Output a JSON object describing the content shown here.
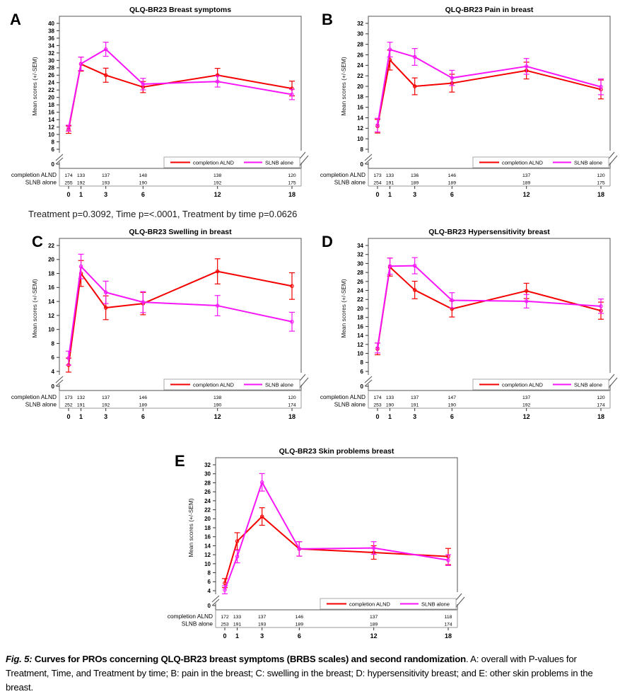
{
  "figure": {
    "pvalue_note": "Treatment p=0.3092, Time p=<.0001, Treatment by time p=0.0626",
    "caption": {
      "fig_label": "Fig. 5: ",
      "bold": "Curves for PROs concerning QLQ-BR23 breast symptoms (BRBS scales) and second randomization",
      "rest": ". A: overall with P-values for Treatment, Time, and Treatment by time; B: pain in the breast; C: swelling in the breast; D: hypersensitivity breast; and E: other skin problems in the breast."
    }
  },
  "colors": {
    "completion_alnd": "#f50000",
    "slnb_alone": "#f716f7"
  },
  "chart_data": [
    {
      "panel": "A",
      "type": "line",
      "title": "QLQ-BR23 Breast symptoms",
      "ylabel": "Mean scores (+/-SEM)",
      "x": [
        0,
        1,
        3,
        6,
        12,
        18
      ],
      "xticklabels": [
        "0",
        "1",
        "3",
        "6",
        "12",
        "18"
      ],
      "ylim": [
        6,
        40
      ],
      "ytick_step": 2,
      "broken_axis_zero_label": "0",
      "legend": [
        "completion ALND",
        "SLNB alone"
      ],
      "at_risk_labels": [
        "completion ALND",
        "SLNB alone"
      ],
      "series": [
        {
          "name": "completion ALND",
          "color": "#f50000",
          "values": [
            11.3,
            29.0,
            26.0,
            22.8,
            26.0,
            22.4
          ],
          "sem": [
            1.0,
            1.9,
            1.9,
            1.5,
            1.85,
            2.0
          ],
          "at_risk": [
            174,
            133,
            137,
            148,
            138,
            120
          ]
        },
        {
          "name": "SLNB alone",
          "color": "#f716f7",
          "values": [
            11.7,
            29.1,
            33.0,
            23.6,
            24.3,
            20.8
          ],
          "sem": [
            0.8,
            1.8,
            1.9,
            1.55,
            1.5,
            1.4
          ],
          "at_risk": [
            255,
            192,
            193,
            190,
            192,
            175
          ]
        }
      ]
    },
    {
      "panel": "B",
      "type": "line",
      "title": "QLQ-BR23 Pain in breast",
      "ylabel": "Mean scores (+/-SEM)",
      "x": [
        0,
        1,
        3,
        6,
        12,
        18
      ],
      "xticklabels": [
        "0",
        "1",
        "3",
        "6",
        "12",
        "18"
      ],
      "ylim": [
        8,
        32
      ],
      "ytick_step": 2,
      "broken_axis_zero_label": "0",
      "legend": [
        "completion ALND",
        "SLNB alone"
      ],
      "at_risk_labels": [
        "completion ALND",
        "SLNB alone"
      ],
      "series": [
        {
          "name": "completion ALND",
          "color": "#f50000",
          "values": [
            12.4,
            25.0,
            20.0,
            20.6,
            23.0,
            19.4
          ],
          "sem": [
            1.3,
            1.9,
            1.6,
            1.7,
            1.6,
            1.8
          ],
          "at_risk": [
            173,
            133,
            136,
            146,
            137,
            120
          ]
        },
        {
          "name": "SLNB alone",
          "color": "#f716f7",
          "values": [
            12.6,
            27.0,
            25.6,
            21.6,
            23.8,
            19.9
          ],
          "sem": [
            1.3,
            1.4,
            1.6,
            1.45,
            1.5,
            1.5
          ],
          "at_risk": [
            254,
            191,
            189,
            189,
            189,
            175
          ]
        }
      ]
    },
    {
      "panel": "C",
      "type": "line",
      "title": "QLQ-BR23 Swelling in breast",
      "ylabel": "Mean scores (+/-SEM)",
      "x": [
        0,
        1,
        3,
        6,
        12,
        18
      ],
      "xticklabels": [
        "0",
        "1",
        "3",
        "6",
        "12",
        "18"
      ],
      "ylim": [
        4,
        22
      ],
      "ytick_step": 2,
      "broken_axis_zero_label": "0",
      "legend": [
        "completion ALND",
        "SLNB alone"
      ],
      "at_risk_labels": [
        "completion ALND",
        "SLNB alone"
      ],
      "series": [
        {
          "name": "completion ALND",
          "color": "#f50000",
          "values": [
            4.9,
            18.0,
            13.1,
            13.7,
            18.3,
            16.2
          ],
          "sem": [
            1.0,
            1.85,
            1.7,
            1.6,
            1.8,
            1.9
          ],
          "at_risk": [
            173,
            132,
            137,
            146,
            138,
            120
          ]
        },
        {
          "name": "SLNB alone",
          "color": "#f716f7",
          "values": [
            5.9,
            19.0,
            15.3,
            13.9,
            13.4,
            11.1
          ],
          "sem": [
            1.0,
            1.75,
            1.6,
            1.5,
            1.45,
            1.35
          ],
          "at_risk": [
            252,
            191,
            192,
            189,
            190,
            174
          ]
        }
      ]
    },
    {
      "panel": "D",
      "type": "line",
      "title": "QLQ-BR23 Hypersensitivity breast",
      "ylabel": "Mean scores (+/-SEM)",
      "x": [
        0,
        1,
        3,
        6,
        12,
        18
      ],
      "xticklabels": [
        "0",
        "1",
        "3",
        "6",
        "12",
        "18"
      ],
      "ylim": [
        6,
        34
      ],
      "ytick_step": 2,
      "broken_axis_zero_label": "0",
      "legend": [
        "completion ALND",
        "SLNB alone"
      ],
      "at_risk_labels": [
        "completion ALND",
        "SLNB alone"
      ],
      "series": [
        {
          "name": "completion ALND",
          "color": "#f50000",
          "values": [
            11.0,
            29.2,
            24.1,
            19.9,
            23.9,
            19.5
          ],
          "sem": [
            1.3,
            2.0,
            1.95,
            1.8,
            1.7,
            1.9
          ],
          "at_risk": [
            174,
            133,
            137,
            147,
            137,
            120
          ]
        },
        {
          "name": "SLNB alone",
          "color": "#f716f7",
          "values": [
            11.2,
            29.4,
            29.5,
            21.8,
            21.6,
            20.5
          ],
          "sem": [
            1.1,
            1.8,
            1.8,
            1.7,
            1.5,
            1.6
          ],
          "at_risk": [
            253,
            190,
            191,
            190,
            192,
            174
          ]
        }
      ]
    },
    {
      "panel": "E",
      "type": "line",
      "title": "QLQ-BR23 Skin problems breast",
      "ylabel": "Mean scores (+/-SEM)",
      "x": [
        0,
        1,
        3,
        6,
        12,
        18
      ],
      "xticklabels": [
        "0",
        "1",
        "3",
        "6",
        "12",
        "18"
      ],
      "ylim": [
        4,
        32
      ],
      "ytick_step": 2,
      "broken_axis_zero_label": "0",
      "legend": [
        "completion ALND",
        "SLNB alone"
      ],
      "at_risk_labels": [
        "completion ALND",
        "SLNB alone"
      ],
      "series": [
        {
          "name": "completion ALND",
          "color": "#f50000",
          "values": [
            5.7,
            15.0,
            20.5,
            13.3,
            12.5,
            11.6
          ],
          "sem": [
            1.0,
            1.9,
            1.95,
            1.6,
            1.5,
            1.8
          ],
          "at_risk": [
            172,
            133,
            137,
            146,
            137,
            118
          ]
        },
        {
          "name": "SLNB alone",
          "color": "#f716f7",
          "values": [
            4.2,
            11.6,
            28.1,
            13.3,
            13.5,
            10.8
          ],
          "sem": [
            0.9,
            1.4,
            1.95,
            1.6,
            1.4,
            1.2
          ],
          "at_risk": [
            253,
            191,
            193,
            189,
            189,
            174
          ]
        }
      ]
    }
  ]
}
